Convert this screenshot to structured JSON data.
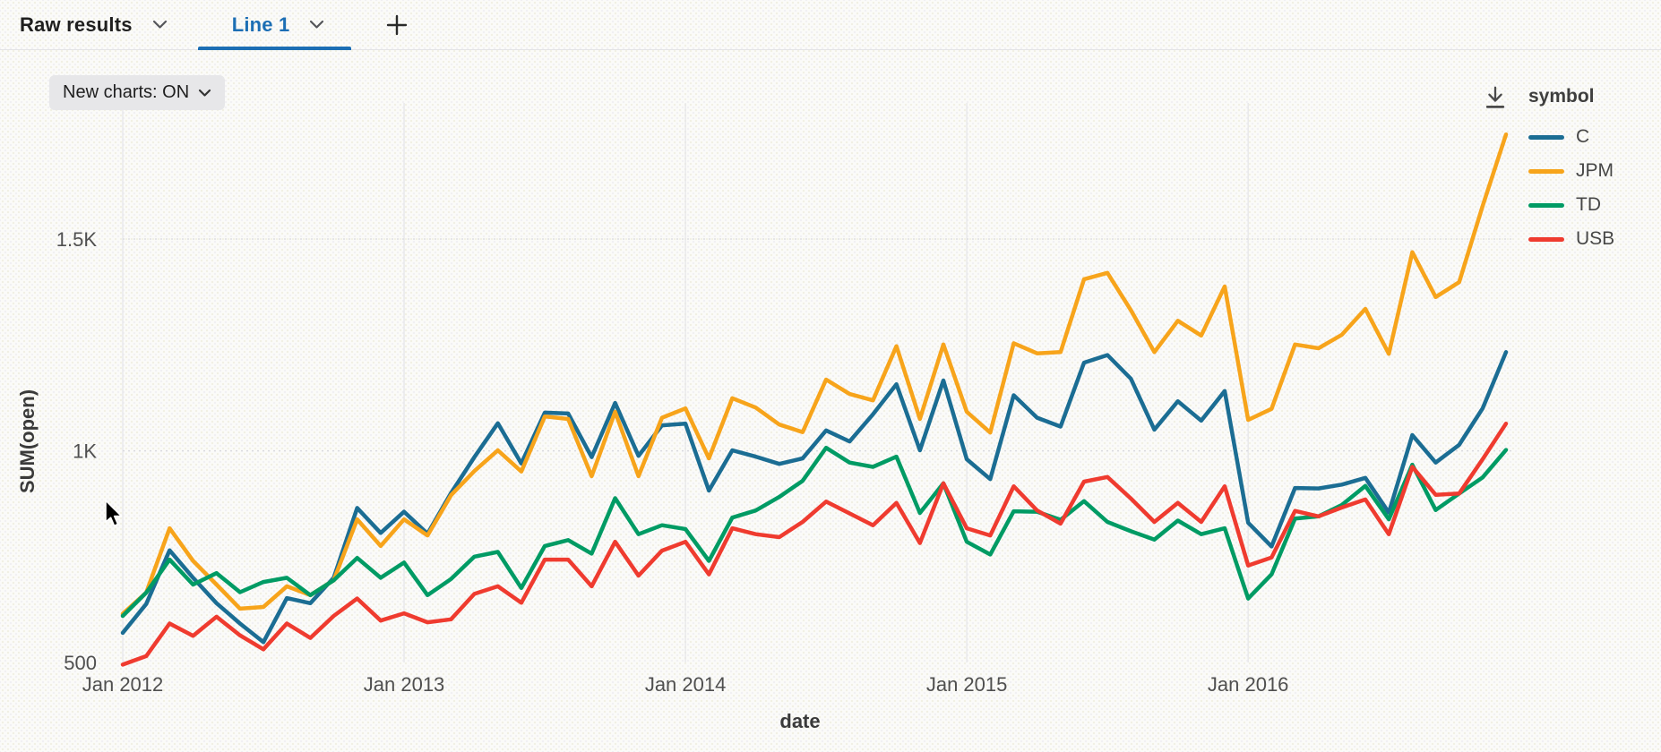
{
  "tab_bar": {
    "tabs": [
      {
        "label": "Raw results",
        "active": false
      },
      {
        "label": "Line 1",
        "active": true
      }
    ]
  },
  "toolbar": {
    "new_charts_label": "New charts: ON"
  },
  "icons": {
    "chevron_down": "chevron-down",
    "plus": "plus",
    "download": "download-arrow"
  },
  "chart_data": {
    "type": "line",
    "x_field": "date",
    "y_field": "SUM(open)",
    "legend_title": "symbol",
    "legend_position": "top-right",
    "grid": "horizontal-dotted, vertical-solid",
    "x_tick_labels": [
      "Jan 2012",
      "Jan 2013",
      "Jan 2014",
      "Jan 2015",
      "Jan 2016"
    ],
    "y_axis": {
      "ticks": [
        500,
        1000,
        1500
      ],
      "tick_labels": [
        "500",
        "1K",
        "1.5K"
      ],
      "range": [
        450,
        1790
      ]
    },
    "months": [
      "2012-01",
      "2012-02",
      "2012-03",
      "2012-04",
      "2012-05",
      "2012-06",
      "2012-07",
      "2012-08",
      "2012-09",
      "2012-10",
      "2012-11",
      "2012-12",
      "2013-01",
      "2013-02",
      "2013-03",
      "2013-04",
      "2013-05",
      "2013-06",
      "2013-07",
      "2013-08",
      "2013-09",
      "2013-10",
      "2013-11",
      "2013-12",
      "2014-01",
      "2014-02",
      "2014-03",
      "2014-04",
      "2014-05",
      "2014-06",
      "2014-07",
      "2014-08",
      "2014-09",
      "2014-10",
      "2014-11",
      "2014-12",
      "2015-01",
      "2015-02",
      "2015-03",
      "2015-04",
      "2015-05",
      "2015-06",
      "2015-07",
      "2015-08",
      "2015-09",
      "2015-10",
      "2015-11",
      "2015-12",
      "2016-01",
      "2016-02",
      "2016-03",
      "2016-04",
      "2016-05",
      "2016-06",
      "2016-07",
      "2016-08",
      "2016-09",
      "2016-10",
      "2016-11",
      "2016-12"
    ],
    "series": [
      {
        "name": "C",
        "color": "#1B6D93",
        "values": [
          570,
          638,
          765,
          700,
          640,
          592,
          548,
          652,
          640,
          700,
          865,
          806,
          856,
          804,
          900,
          985,
          1065,
          970,
          1090,
          1088,
          985,
          1113,
          988,
          1060,
          1064,
          906,
          1001,
          986,
          969,
          982,
          1048,
          1022,
          1086,
          1157,
          1001,
          1166,
          980,
          933,
          1131,
          1078,
          1057,
          1208,
          1226,
          1170,
          1050,
          1117,
          1071,
          1141,
          830,
          774,
          912,
          911,
          920,
          936,
          854,
          1037,
          972,
          1014,
          1100,
          1233
        ]
      },
      {
        "name": "JPM",
        "color": "#F7A41B",
        "values": [
          615,
          665,
          817,
          740,
          684,
          627,
          631,
          680,
          659,
          694,
          838,
          775,
          838,
          800,
          895,
          952,
          1001,
          951,
          1081,
          1075,
          940,
          1092,
          940,
          1078,
          1100,
          982,
          1124,
          1102,
          1062,
          1044,
          1168,
          1134,
          1119,
          1247,
          1075,
          1251,
          1092,
          1043,
          1254,
          1230,
          1233,
          1405,
          1420,
          1332,
          1233,
          1307,
          1272,
          1388,
          1073,
          1099,
          1251,
          1242,
          1274,
          1335,
          1229,
          1469,
          1363,
          1398,
          1578,
          1747
        ]
      },
      {
        "name": "TD",
        "color": "#009B64",
        "values": [
          610,
          665,
          743,
          684,
          711,
          666,
          690,
          700,
          659,
          694,
          747,
          700,
          736,
          659,
          697,
          750,
          761,
          676,
          775,
          789,
          757,
          888,
          803,
          824,
          815,
          740,
          842,
          859,
          891,
          929,
          1007,
          972,
          962,
          986,
          853,
          923,
          785,
          755,
          857,
          856,
          837,
          881,
          832,
          810,
          790,
          835,
          803,
          817,
          651,
          708,
          840,
          845,
          872,
          917,
          838,
          967,
          860,
          899,
          937,
          1002
        ]
      },
      {
        "name": "USB",
        "color": "#EF3B2F",
        "values": [
          495,
          515,
          592,
          563,
          608,
          564,
          531,
          592,
          558,
          610,
          651,
          599,
          616,
          595,
          602,
          662,
          680,
          641,
          743,
          743,
          680,
          785,
          705,
          764,
          785,
          708,
          817,
          803,
          796,
          832,
          880,
          852,
          824,
          877,
          782,
          923,
          817,
          800,
          916,
          859,
          828,
          927,
          938,
          887,
          832,
          877,
          832,
          916,
          729,
          748,
          858,
          845,
          866,
          885,
          803,
          962,
          896,
          899,
          980,
          1064
        ]
      }
    ]
  }
}
